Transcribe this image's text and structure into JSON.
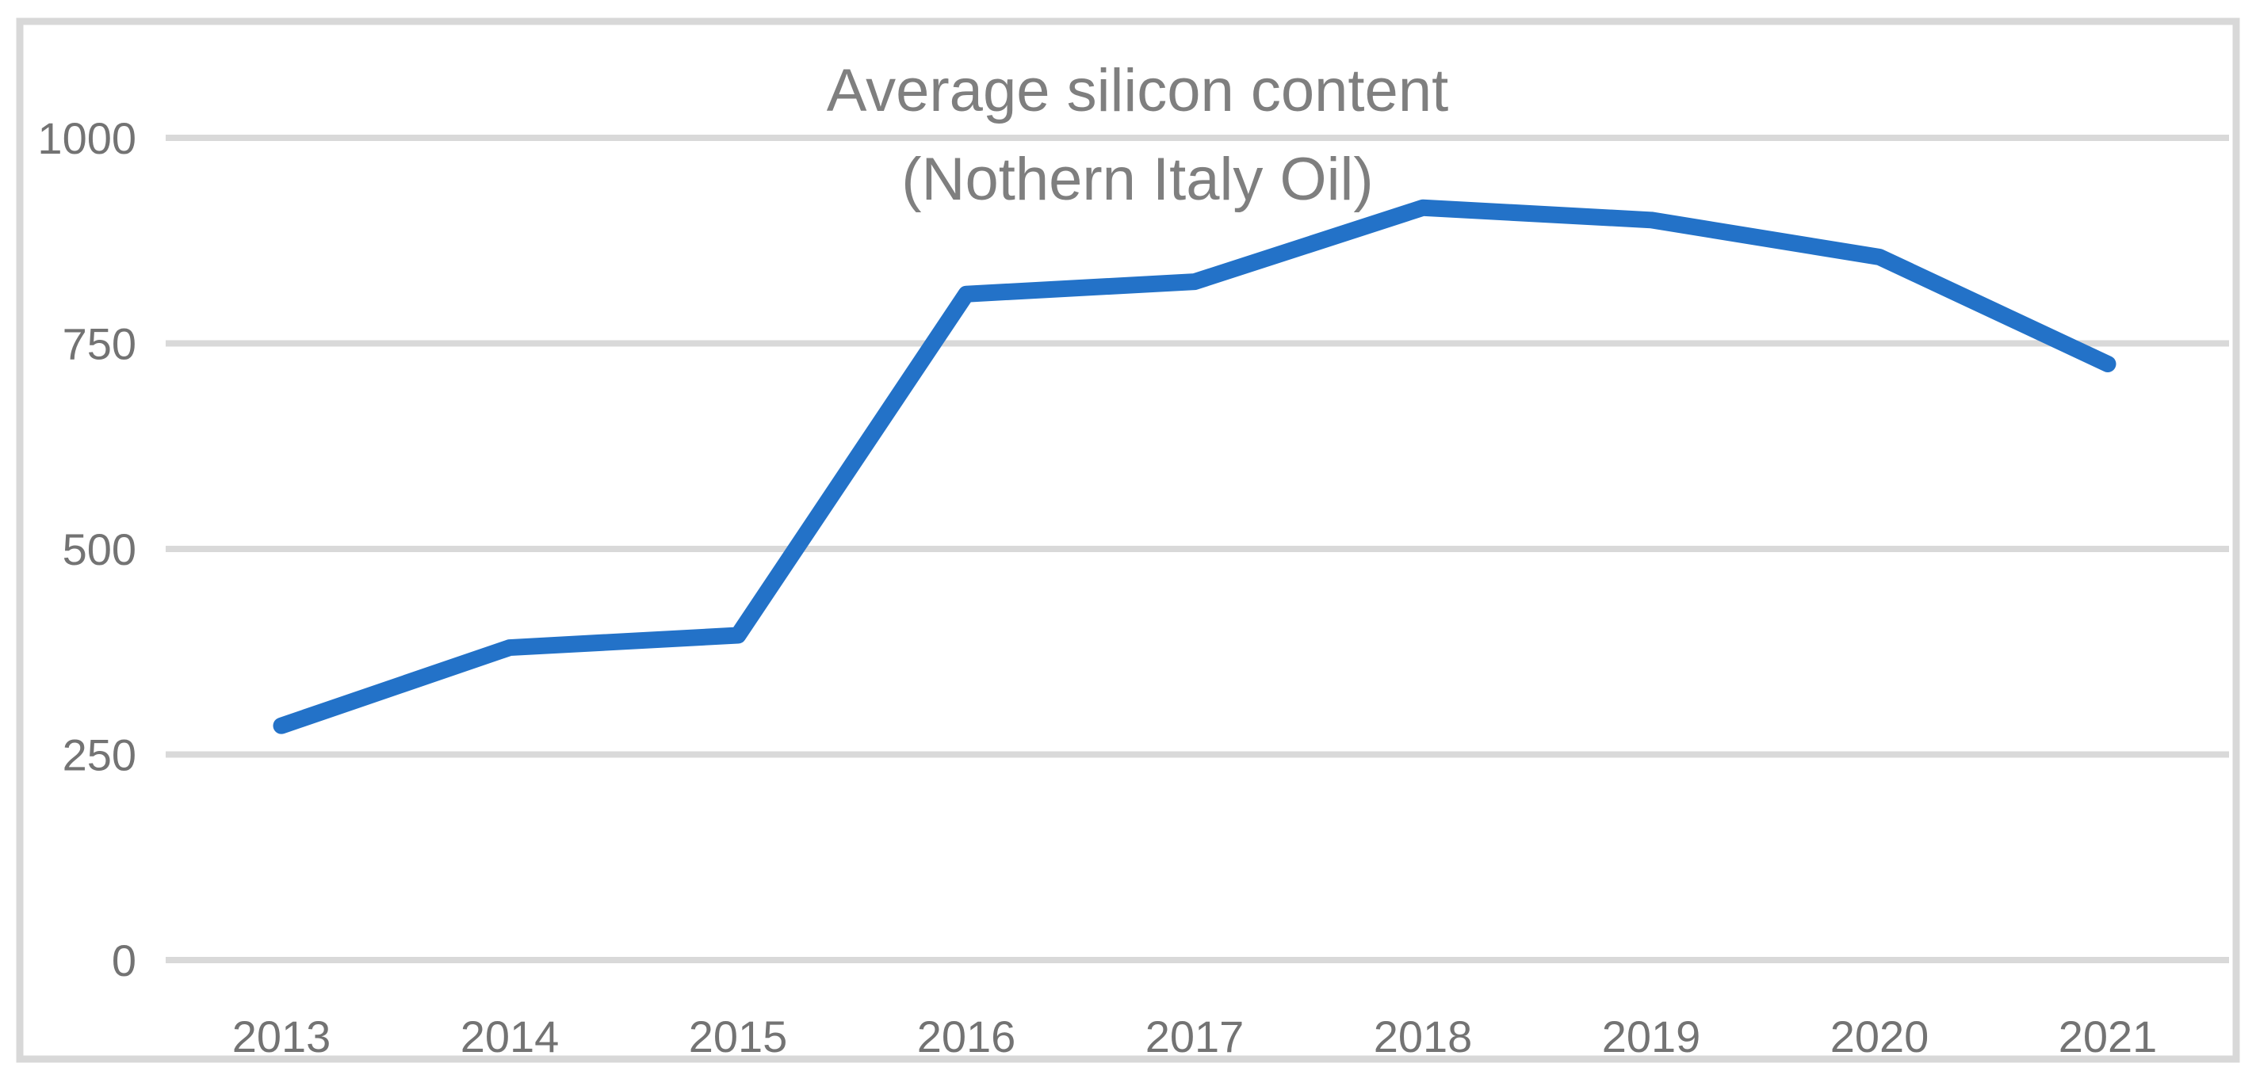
{
  "title": {
    "line1": "Average silicon content",
    "line2": "(Nothern Italy Oil)"
  },
  "chart_data": {
    "type": "line",
    "title": "Average silicon content (Nothern Italy Oil)",
    "categories": [
      "2013",
      "2014",
      "2015",
      "2016",
      "2017",
      "2018",
      "2019",
      "2020",
      "2021"
    ],
    "values": [
      285,
      380,
      395,
      810,
      825,
      915,
      900,
      855,
      725
    ],
    "xlabel": "",
    "ylabel": "",
    "ylim": [
      0,
      1000
    ],
    "yticks": [
      0,
      250,
      500,
      750,
      1000
    ],
    "ytick_labels": [
      "0",
      "250",
      "500",
      "750",
      "1000"
    ],
    "grid": "horizontal",
    "legend": false,
    "markers": false
  },
  "colors": {
    "line": "#2372c8",
    "gridline": "#d9d9d9",
    "frame_border": "#d8d8d8",
    "title_text": "#7f7f7f",
    "tick_text": "#737373",
    "background": "#ffffff"
  }
}
